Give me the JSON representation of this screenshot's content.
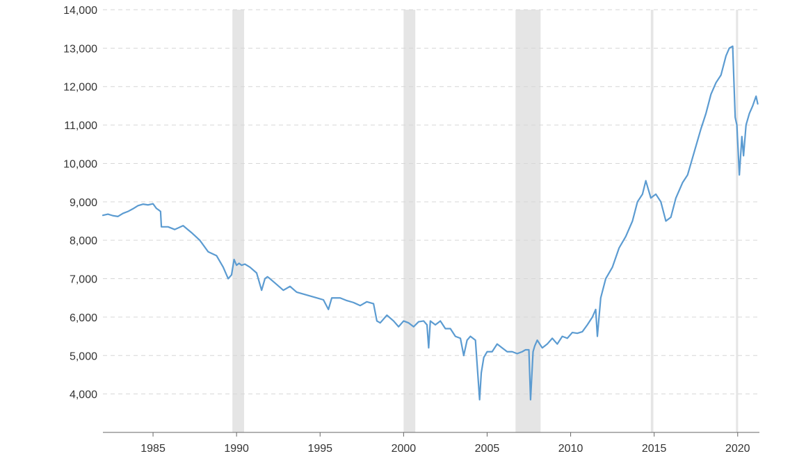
{
  "chart_data": {
    "type": "line",
    "title": "",
    "xlabel": "",
    "ylabel": "",
    "xlim": [
      1982.0,
      2021.3
    ],
    "ylim": [
      3000,
      14000
    ],
    "grid": true,
    "x_ticks": [
      1985,
      1990,
      1995,
      2000,
      2005,
      2010,
      2015,
      2020
    ],
    "x_tick_labels": [
      "1985",
      "1990",
      "1995",
      "2000",
      "2005",
      "2010",
      "2015",
      "2020"
    ],
    "y_ticks": [
      4000,
      5000,
      6000,
      7000,
      8000,
      9000,
      10000,
      11000,
      12000,
      13000,
      14000
    ],
    "y_tick_labels": [
      "4,000",
      "5,000",
      "6,000",
      "7,000",
      "8,000",
      "9,000",
      "10,000",
      "11,000",
      "12,000",
      "13,000",
      "14,000"
    ],
    "colors": {
      "line": "#5b9bd1",
      "recession": "#e5e5e5",
      "grid": "#d6d6d6",
      "text": "#333333"
    },
    "recessions": [
      {
        "start": 1989.75,
        "end": 1990.45
      },
      {
        "start": 2000.0,
        "end": 2000.7
      },
      {
        "start": 2006.7,
        "end": 2008.2
      },
      {
        "start": 2014.8,
        "end": 2014.95
      },
      {
        "start": 2019.9,
        "end": 2020.0
      }
    ],
    "series": [
      {
        "x": [
          1982.0,
          1982.3,
          1982.6,
          1982.9,
          1983.2,
          1983.5,
          1983.8,
          1984.1,
          1984.4,
          1984.7,
          1985.0,
          1985.2,
          1985.3,
          1985.45,
          1985.5,
          1985.9,
          1986.3,
          1986.8,
          1987.3,
          1987.8,
          1988.3,
          1988.8,
          1989.2,
          1989.5,
          1989.7,
          1989.85,
          1990.0,
          1990.15,
          1990.3,
          1990.5,
          1990.8,
          1991.2,
          1991.5,
          1991.7,
          1991.85,
          1992.0,
          1992.4,
          1992.8,
          1993.2,
          1993.6,
          1994.0,
          1994.4,
          1994.8,
          1995.2,
          1995.5,
          1995.7,
          1996.2,
          1996.6,
          1997.0,
          1997.4,
          1997.8,
          1998.2,
          1998.4,
          1998.6,
          1999.0,
          1999.4,
          1999.7,
          2000.0,
          2000.3,
          2000.6,
          2000.9,
          2001.2,
          2001.4,
          2001.5,
          2001.6,
          2001.9,
          2002.2,
          2002.5,
          2002.8,
          2003.1,
          2003.4,
          2003.6,
          2003.8,
          2004.0,
          2004.3,
          2004.55,
          2004.65,
          2004.8,
          2005.0,
          2005.3,
          2005.6,
          2005.9,
          2006.2,
          2006.5,
          2006.8,
          2007.1,
          2007.3,
          2007.5,
          2007.6,
          2007.75,
          2007.85,
          2008.0,
          2008.3,
          2008.6,
          2008.9,
          2009.2,
          2009.5,
          2009.8,
          2010.1,
          2010.4,
          2010.7,
          2011.0,
          2011.3,
          2011.5,
          2011.6,
          2011.8,
          2012.1,
          2012.5,
          2012.9,
          2013.3,
          2013.7,
          2014.0,
          2014.3,
          2014.5,
          2014.8,
          2015.1,
          2015.4,
          2015.7,
          2016.0,
          2016.3,
          2016.7,
          2017.0,
          2017.4,
          2017.8,
          2018.1,
          2018.4,
          2018.7,
          2019.0,
          2019.3,
          2019.5,
          2019.7,
          2019.85,
          2019.95,
          2020.1,
          2020.25,
          2020.35,
          2020.5,
          2020.7,
          2020.9,
          2021.1,
          2021.2
        ],
        "y": [
          8650,
          8680,
          8640,
          8620,
          8700,
          8750,
          8820,
          8900,
          8940,
          8920,
          8950,
          8830,
          8800,
          8750,
          8350,
          8350,
          8280,
          8380,
          8200,
          8000,
          7700,
          7600,
          7300,
          7000,
          7100,
          7500,
          7350,
          7400,
          7350,
          7380,
          7300,
          7150,
          6700,
          7000,
          7050,
          7000,
          6850,
          6700,
          6800,
          6650,
          6600,
          6550,
          6500,
          6450,
          6200,
          6500,
          6500,
          6430,
          6380,
          6300,
          6400,
          6350,
          5900,
          5850,
          6050,
          5900,
          5750,
          5900,
          5850,
          5750,
          5880,
          5900,
          5800,
          5200,
          5900,
          5800,
          5900,
          5700,
          5700,
          5500,
          5450,
          5000,
          5400,
          5500,
          5400,
          3850,
          4550,
          4950,
          5100,
          5100,
          5300,
          5200,
          5100,
          5100,
          5050,
          5100,
          5150,
          5150,
          3850,
          5100,
          5250,
          5400,
          5200,
          5300,
          5450,
          5300,
          5500,
          5450,
          5600,
          5580,
          5620,
          5800,
          6000,
          6200,
          5500,
          6500,
          7000,
          7300,
          7800,
          8100,
          8500,
          9000,
          9200,
          9550,
          9100,
          9200,
          9000,
          8500,
          8600,
          9100,
          9500,
          9700,
          10300,
          10900,
          11300,
          11800,
          12100,
          12300,
          12800,
          13000,
          13050,
          11200,
          11000,
          9700,
          10700,
          10200,
          11000,
          11300,
          11500,
          11750,
          11550
        ]
      }
    ]
  }
}
